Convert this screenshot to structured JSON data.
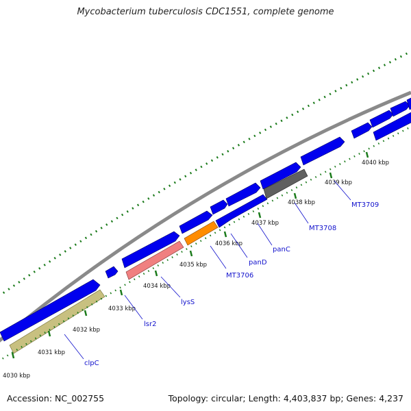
{
  "title": "Mycobacterium tuberculosis CDC1551, complete genome",
  "footer": {
    "accession": "Accession: NC_002755",
    "stats": "Topology: circular; Length: 4,403,837 bp; Genes: 4,237"
  },
  "colors": {
    "backbone": "#8a8a8a",
    "gene_default": "#0000ee",
    "tick_dotted": "#1a7a1a",
    "tick_major": "#1a7a1a",
    "label_text": "#1010cc"
  },
  "scale_labels": [
    "4030 kbp",
    "4031 kbp",
    "4032 kbp",
    "4033 kbp",
    "4034 kbp",
    "4035 kbp",
    "4036 kbp",
    "4037 kbp",
    "4038 kbp",
    "4039 kbp",
    "4040 kbp"
  ],
  "gene_labels": [
    "clpC",
    "lsr2",
    "lysS",
    "MT3706",
    "panD",
    "panC",
    "MT3708",
    "MT3709"
  ],
  "feature_colors": {
    "clpC": "#c8c080",
    "lysS": "#f08080",
    "MT3706": "#ff8c00",
    "MT3708": "#606060"
  }
}
